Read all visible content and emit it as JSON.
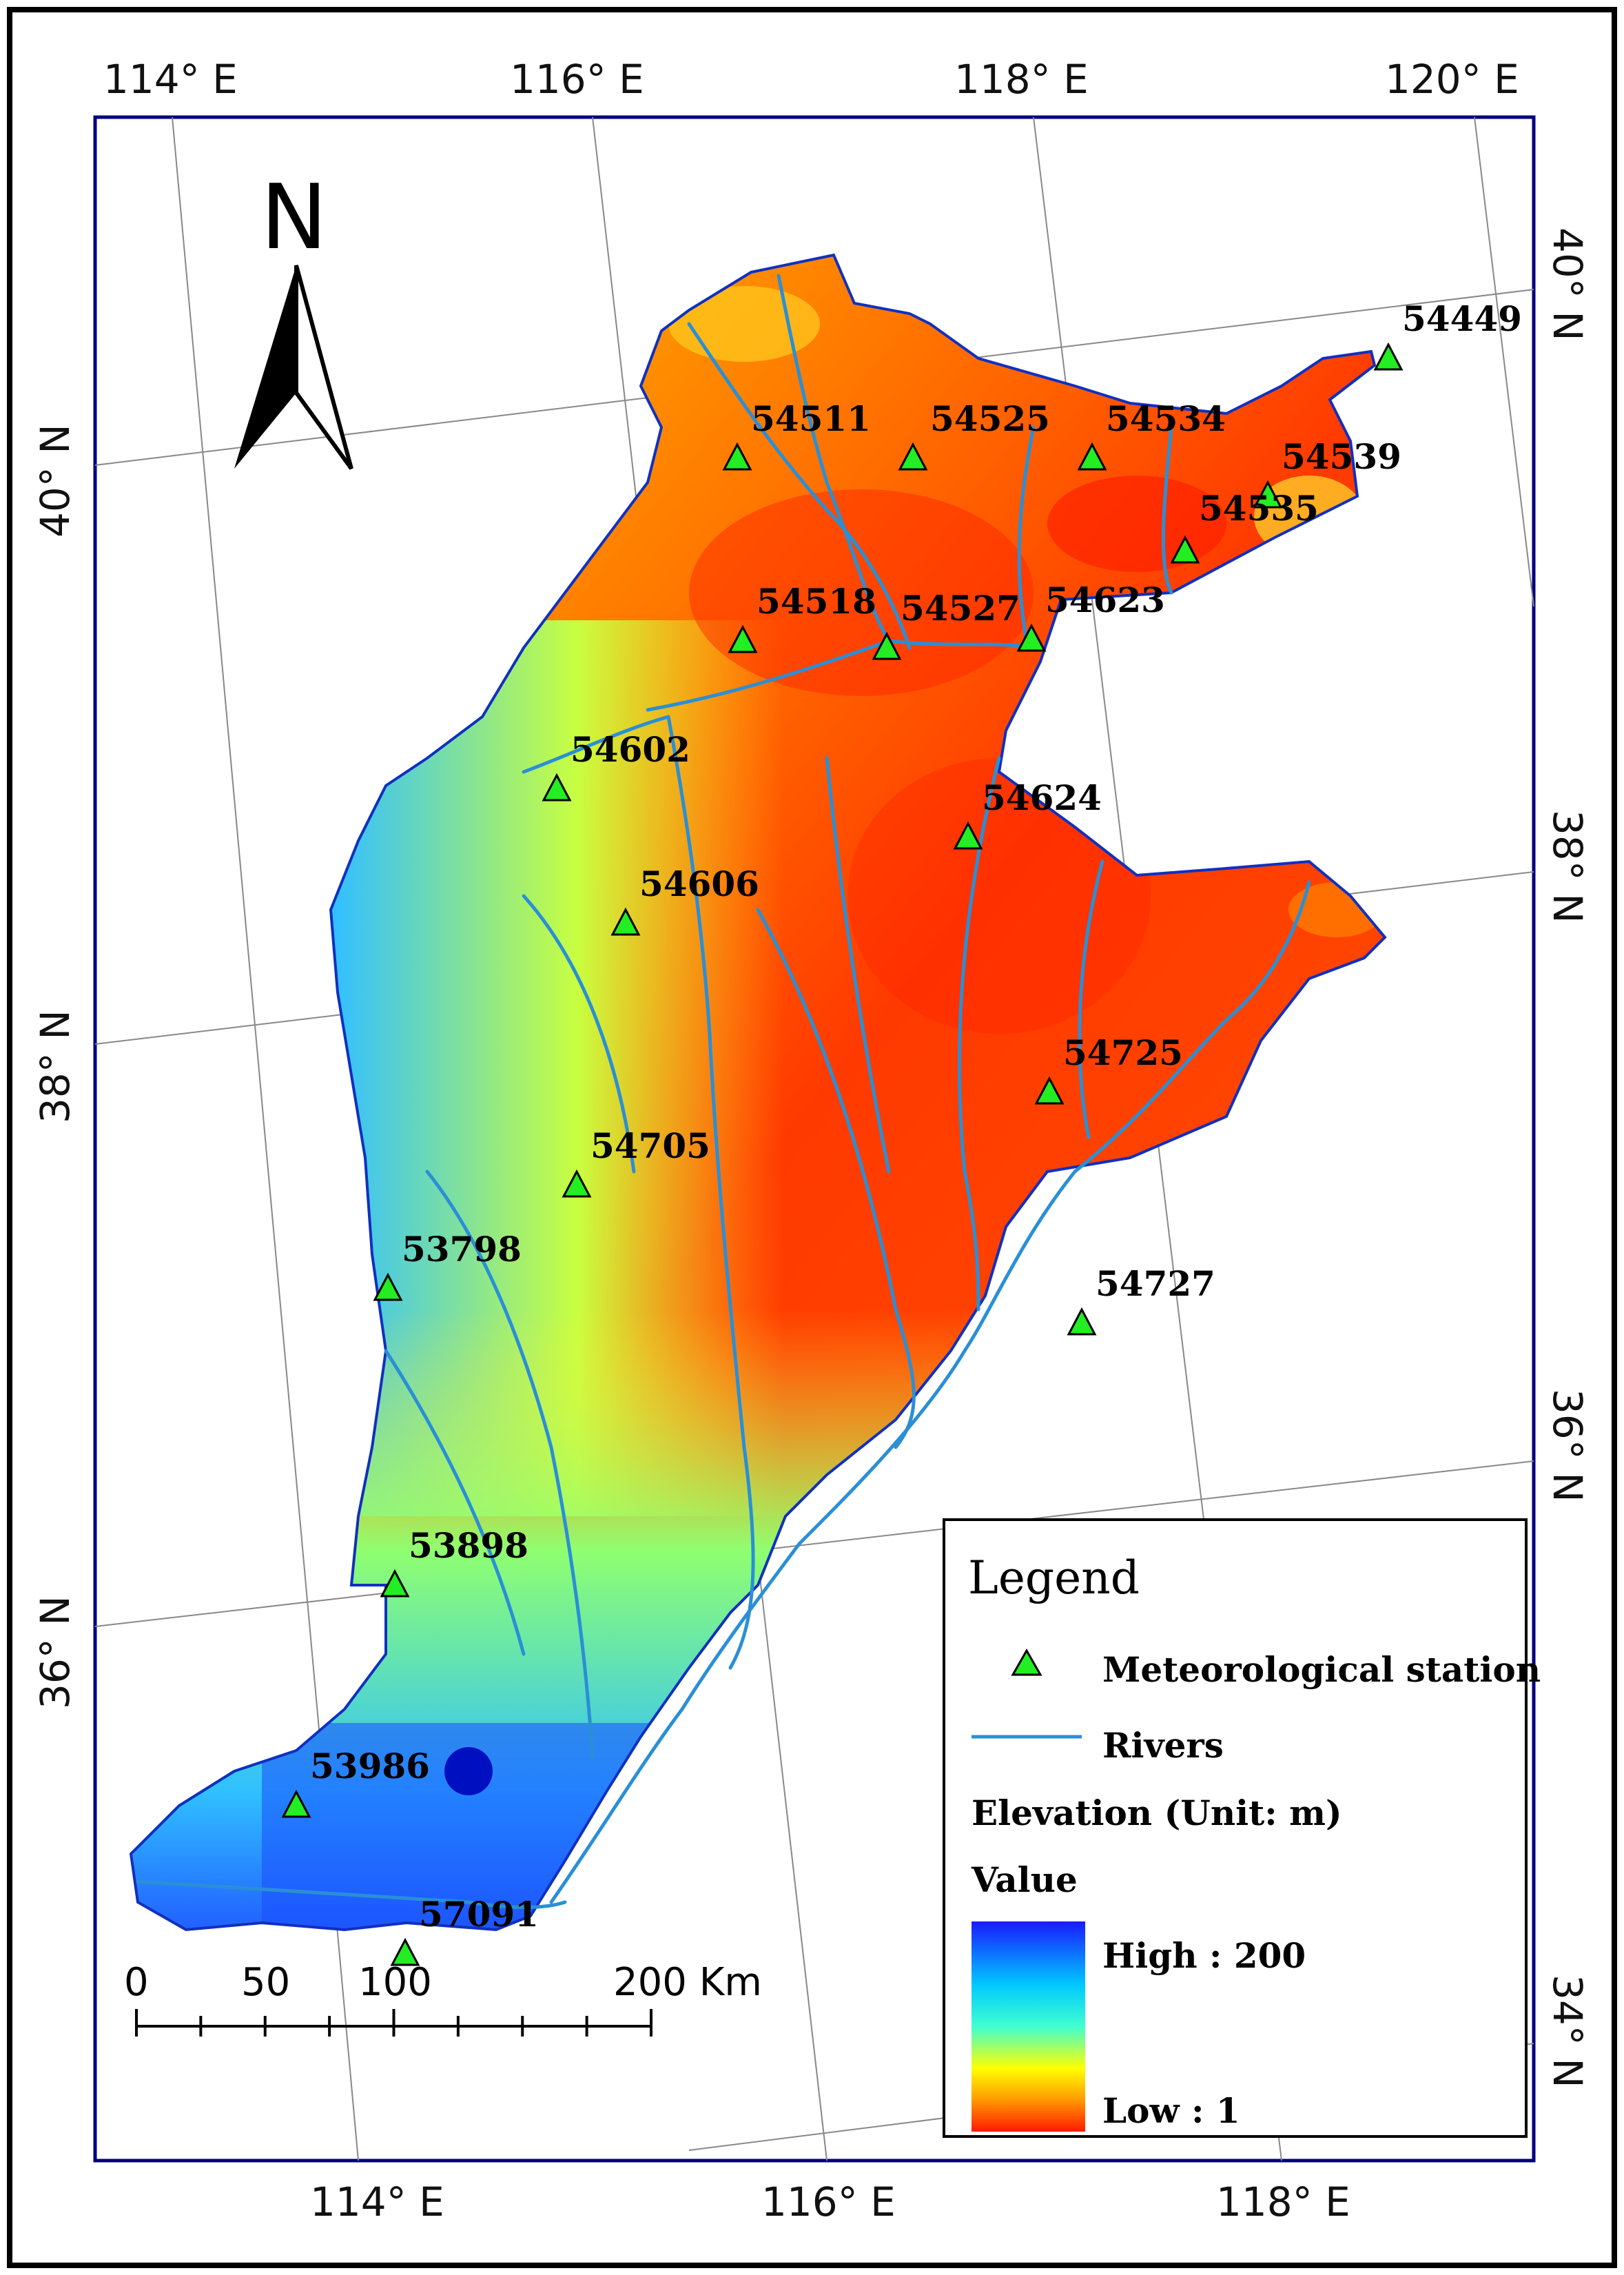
{
  "graticule": {
    "top_labels": [
      "114° E",
      "116° E",
      "118° E",
      "120° E"
    ],
    "bottom_labels": [
      "114° E",
      "116° E",
      "118° E"
    ],
    "left_labels": [
      "40° N",
      "38° N",
      "36° N"
    ],
    "right_labels": [
      "40° N",
      "38° N",
      "36° N",
      "34° N"
    ]
  },
  "north_arrow": {
    "label": "N"
  },
  "stations": [
    {
      "id": "54449"
    },
    {
      "id": "54511"
    },
    {
      "id": "54525"
    },
    {
      "id": "54534"
    },
    {
      "id": "54539"
    },
    {
      "id": "54535"
    },
    {
      "id": "54518"
    },
    {
      "id": "54527"
    },
    {
      "id": "54623"
    },
    {
      "id": "54602"
    },
    {
      "id": "54624"
    },
    {
      "id": "54606"
    },
    {
      "id": "54725"
    },
    {
      "id": "54705"
    },
    {
      "id": "53798"
    },
    {
      "id": "54727"
    },
    {
      "id": "53898"
    },
    {
      "id": "53986"
    },
    {
      "id": "57091"
    }
  ],
  "legend": {
    "title": "Legend",
    "station_label": "Meteorological station",
    "rivers_label": "Rivers",
    "elevation_label": "Elevation (Unit: m)",
    "value_label": "Value",
    "high_label": "High : 200",
    "low_label": "Low : 1",
    "high_color": "#1a1aff",
    "low_color": "#ff1a00"
  },
  "scale_bar": {
    "ticks": [
      "0",
      "50",
      "100",
      "200 Km"
    ]
  },
  "colors": {
    "frame": "#000080",
    "river": "#2a8fd6",
    "station_fill": "#22ee22",
    "graticule": "#888888"
  }
}
